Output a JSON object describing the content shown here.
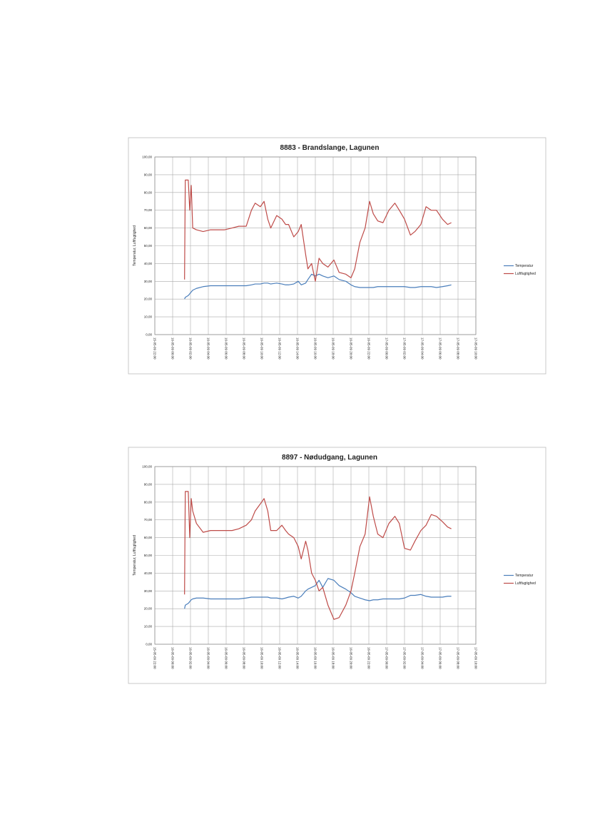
{
  "chart_data": [
    {
      "type": "line",
      "title": "8883 - Brandslange, Lagunen",
      "ylabel": "Temperatur, Luftfugtighed",
      "grid": true,
      "legend": "right",
      "x": [
        "16-05-09 01:20",
        "16-05-09 01:25",
        "16-05-09 01:45",
        "16-05-09 01:55",
        "16-05-09 02:05",
        "16-05-09 02:15",
        "16-05-09 02:40",
        "16-05-09 03:25",
        "16-05-09 04:15",
        "16-05-09 05:00",
        "16-05-09 05:50",
        "16-05-09 06:40",
        "16-05-09 07:25",
        "16-05-09 08:15",
        "16-05-09 08:50",
        "16-05-09 09:15",
        "16-05-09 09:50",
        "16-05-09 10:15",
        "16-05-09 10:40",
        "16-05-09 11:00",
        "16-05-09 11:40",
        "16-05-09 12:15",
        "16-05-09 12:40",
        "16-05-09 13:00",
        "16-05-09 13:35",
        "16-05-09 14:05",
        "16-05-09 14:25",
        "16-05-09 14:55",
        "16-05-09 15:10",
        "16-05-09 15:35",
        "16-05-09 16:00",
        "16-05-09 16:25",
        "16-05-09 16:50",
        "16-05-09 17:25",
        "16-05-09 18:05",
        "16-05-09 18:40",
        "16-05-09 19:25",
        "16-05-09 20:00",
        "16-05-09 20:25",
        "16-05-09 21:00",
        "16-05-09 21:35",
        "16-05-09 22:05",
        "16-05-09 22:30",
        "16-05-09 23:00",
        "16-05-09 23:35",
        "17-05-09 00:15",
        "17-05-09 00:55",
        "17-05-09 01:25",
        "17-05-09 02:00",
        "17-05-09 02:40",
        "17-05-09 03:10",
        "17-05-09 03:50",
        "17-05-09 04:25",
        "17-05-09 05:00",
        "17-05-09 05:35",
        "17-05-09 06:15",
        "17-05-09 06:50",
        "17-05-09 07:15"
      ],
      "series": [
        {
          "name": "Temperatur",
          "color": "#4a7ebb",
          "values": [
            20,
            21,
            22,
            23,
            24,
            25,
            26,
            27,
            27.5,
            27.5,
            27.5,
            27.5,
            27.5,
            27.5,
            28,
            28.5,
            28.5,
            29,
            29,
            28.5,
            29,
            28.5,
            28,
            28,
            28.5,
            30,
            28,
            29,
            31,
            34,
            33,
            34,
            33,
            32,
            33,
            31,
            30,
            28,
            27,
            26.5,
            26.5,
            26.5,
            26.5,
            27,
            27,
            27,
            27,
            27,
            27,
            26.5,
            26.5,
            27,
            27,
            27,
            26.5,
            27,
            27.5,
            28
          ]
        },
        {
          "name": "Luftfugtighed",
          "color": "#be4b48",
          "values": [
            31,
            87,
            87,
            70,
            84,
            60,
            59,
            58,
            59,
            59,
            59,
            60,
            61,
            61,
            70,
            74,
            72,
            75,
            65,
            60,
            67,
            65,
            62,
            62,
            55,
            58,
            62,
            45,
            37,
            40,
            30,
            43,
            40,
            38,
            42,
            35,
            34,
            32,
            37,
            52,
            60,
            75,
            68,
            64,
            63,
            70,
            74,
            70,
            65,
            56,
            58,
            62,
            72,
            70,
            70,
            65,
            62,
            63
          ]
        }
      ],
      "xlim": [
        "15-05-09 22:00",
        "17-05-09 10:00"
      ],
      "xticks": [
        "15-05-09 22:00",
        "16-05-09 00:00",
        "16-05-09 02:00",
        "16-05-09 04:00",
        "16-05-09 06:00",
        "16-05-09 08:00",
        "16-05-09 10:00",
        "16-05-09 12:00",
        "16-05-09 14:00",
        "16-05-09 16:00",
        "16-05-09 18:00",
        "16-05-09 20:00",
        "16-05-09 22:00",
        "17-05-09 00:00",
        "17-05-09 02:00",
        "17-05-09 04:00",
        "17-05-09 06:00",
        "17-05-09 08:00",
        "17-05-09 10:00"
      ],
      "ylim": [
        0,
        100
      ],
      "yticks": [
        {
          "value": 0,
          "label": "0,00"
        },
        {
          "value": 10,
          "label": "10,00"
        },
        {
          "value": 20,
          "label": "20,00"
        },
        {
          "value": 30,
          "label": "30,00"
        },
        {
          "value": 40,
          "label": "40,00"
        },
        {
          "value": 50,
          "label": "50,00"
        },
        {
          "value": 60,
          "label": "60,00"
        },
        {
          "value": 70,
          "label": "70,00"
        },
        {
          "value": 80,
          "label": "80,00"
        },
        {
          "value": 90,
          "label": "90,00"
        },
        {
          "value": 100,
          "label": "100,00"
        }
      ]
    },
    {
      "type": "line",
      "title": "8897 - Nødudgang, Lagunen",
      "ylabel": "Temperatur, Luftfugtighed",
      "grid": true,
      "legend": "right",
      "x": [
        "16-05-09 01:20",
        "16-05-09 01:25",
        "16-05-09 01:45",
        "16-05-09 01:55",
        "16-05-09 02:05",
        "16-05-09 02:15",
        "16-05-09 02:40",
        "16-05-09 03:25",
        "16-05-09 04:15",
        "16-05-09 05:00",
        "16-05-09 05:50",
        "16-05-09 06:40",
        "16-05-09 07:25",
        "16-05-09 08:15",
        "16-05-09 08:50",
        "16-05-09 09:15",
        "16-05-09 09:50",
        "16-05-09 10:15",
        "16-05-09 10:40",
        "16-05-09 11:00",
        "16-05-09 11:40",
        "16-05-09 12:15",
        "16-05-09 12:40",
        "16-05-09 13:00",
        "16-05-09 13:35",
        "16-05-09 14:05",
        "16-05-09 14:25",
        "16-05-09 14:55",
        "16-05-09 15:10",
        "16-05-09 15:35",
        "16-05-09 16:00",
        "16-05-09 16:25",
        "16-05-09 16:50",
        "16-05-09 17:25",
        "16-05-09 18:05",
        "16-05-09 18:40",
        "16-05-09 19:25",
        "16-05-09 20:00",
        "16-05-09 20:25",
        "16-05-09 21:00",
        "16-05-09 21:35",
        "16-05-09 22:05",
        "16-05-09 22:30",
        "16-05-09 23:00",
        "16-05-09 23:35",
        "17-05-09 00:15",
        "17-05-09 00:55",
        "17-05-09 01:25",
        "17-05-09 02:00",
        "17-05-09 02:40",
        "17-05-09 03:10",
        "17-05-09 03:50",
        "17-05-09 04:25",
        "17-05-09 05:00",
        "17-05-09 05:35",
        "17-05-09 06:15",
        "17-05-09 06:50",
        "17-05-09 07:15"
      ],
      "series": [
        {
          "name": "Temperatur",
          "color": "#4a7ebb",
          "values": [
            20,
            22,
            23,
            24,
            25,
            25.5,
            26,
            26,
            25.5,
            25.5,
            25.5,
            25.5,
            25.5,
            26,
            26.5,
            26.5,
            26.5,
            26.5,
            26.5,
            26,
            26,
            25.5,
            26,
            26.5,
            27,
            26,
            27,
            30,
            31,
            32,
            33,
            36,
            32,
            37,
            36,
            33,
            31,
            29,
            27,
            26,
            25,
            24.5,
            25,
            25,
            25.5,
            25.5,
            25.5,
            25.5,
            26,
            27.5,
            27.5,
            28,
            27,
            26.5,
            26.5,
            26.5,
            27,
            27
          ]
        },
        {
          "name": "Luftfugtighed",
          "color": "#be4b48",
          "values": [
            28,
            86,
            86,
            60,
            82,
            75,
            68,
            63,
            64,
            64,
            64,
            64,
            65,
            67,
            70,
            75,
            79,
            82,
            75,
            64,
            64,
            67,
            64,
            62,
            60,
            55,
            48,
            58,
            53,
            40,
            36,
            30,
            32,
            22,
            14,
            15,
            22,
            30,
            40,
            55,
            62,
            83,
            72,
            62,
            60,
            68,
            72,
            68,
            54,
            53,
            58,
            64,
            67,
            73,
            72,
            69,
            66,
            65
          ]
        }
      ],
      "xlim": [
        "15-05-09 22:00",
        "17-05-09 10:00"
      ],
      "xticks": [
        "15-05-09 22:00",
        "16-05-09 00:00",
        "16-05-09 02:00",
        "16-05-09 04:00",
        "16-05-09 06:00",
        "16-05-09 08:00",
        "16-05-09 10:00",
        "16-05-09 12:00",
        "16-05-09 14:00",
        "16-05-09 16:00",
        "16-05-09 18:00",
        "16-05-09 20:00",
        "16-05-09 22:00",
        "17-05-09 00:00",
        "17-05-09 02:00",
        "17-05-09 04:00",
        "17-05-09 06:00",
        "17-05-09 08:00",
        "17-05-09 10:00"
      ],
      "ylim": [
        0,
        100
      ],
      "yticks": [
        {
          "value": 0,
          "label": "0,00"
        },
        {
          "value": 10,
          "label": "10,00"
        },
        {
          "value": 20,
          "label": "20,00"
        },
        {
          "value": 30,
          "label": "30,00"
        },
        {
          "value": 40,
          "label": "40,00"
        },
        {
          "value": 50,
          "label": "50,00"
        },
        {
          "value": 60,
          "label": "60,00"
        },
        {
          "value": 70,
          "label": "70,00"
        },
        {
          "value": 80,
          "label": "80,00"
        },
        {
          "value": 90,
          "label": "90,00"
        },
        {
          "value": 100,
          "label": "100,00"
        }
      ]
    }
  ]
}
